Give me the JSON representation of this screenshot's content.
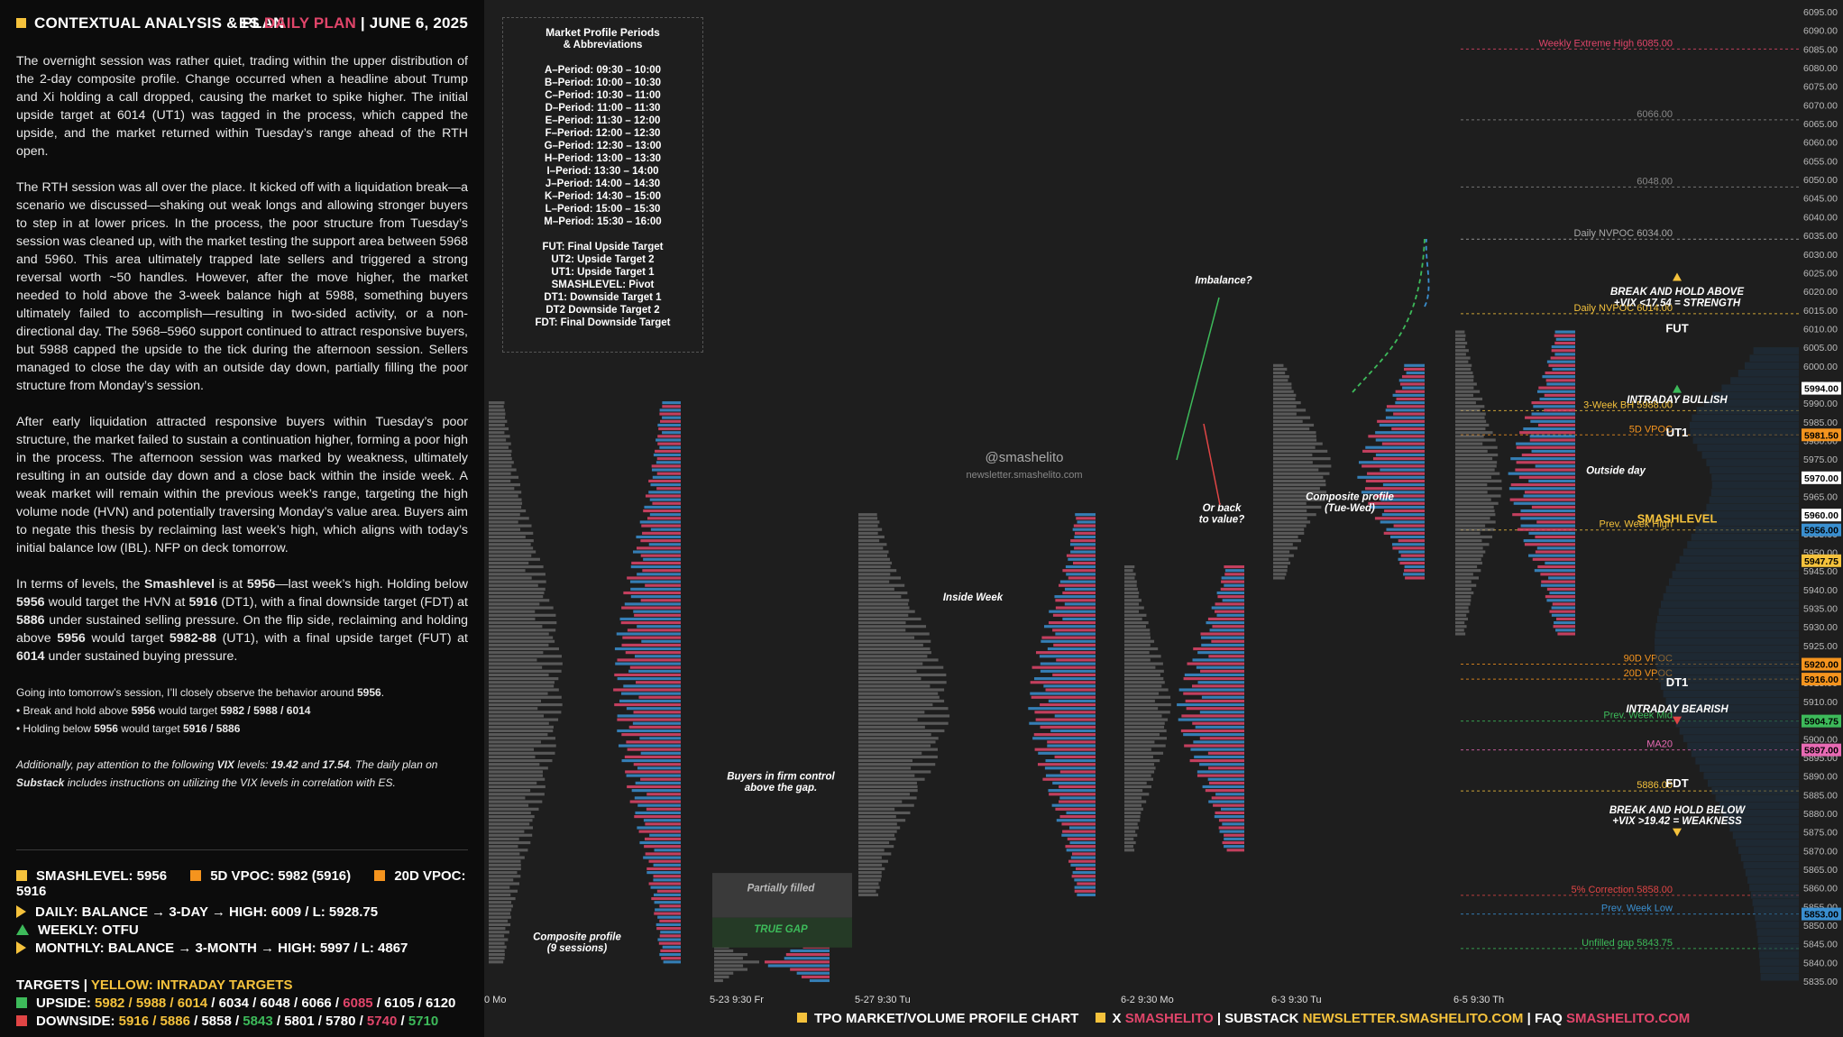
{
  "header": {
    "title": "CONTEXTUAL ANALYSIS & PLAN",
    "instrument": "ES",
    "plan": "DAILY PLAN",
    "date": "JUNE 6, 2025"
  },
  "paragraphs": [
    "The overnight session was rather quiet, trading within the upper distribution of the 2-day composite profile. Change occurred when a headline about Trump and Xi holding a call dropped, causing the market to spike higher. The initial upside target at 6014 (UT1) was tagged in the process, which capped the upside, and the market returned within Tuesday’s range ahead of the RTH open.",
    "The RTH session was all over the place. It kicked off with a liquidation break—a scenario we discussed—shaking out weak longs and allowing stronger buyers to step in at lower prices. In the process, the poor structure from Tuesday’s session was cleaned up, with the market testing the support area between 5968 and 5960. This area ultimately trapped late sellers and triggered a strong reversal worth ~50 handles. However, after the move higher, the market needed to hold above the 3-week balance high at 5988, something buyers ultimately failed to accomplish—resulting in two-sided activity, or a non-directional day. The 5968–5960 support continued to attract responsive buyers, but 5988 capped the upside to the tick during the afternoon session. Sellers managed to close the day with an outside day down, partially filling the poor structure from Monday’s session.",
    "After early liquidation attracted responsive buyers within Tuesday’s poor structure, the market failed to sustain a continuation higher, forming a poor high in the process. The afternoon session was marked by weakness, ultimately resulting in an outside day down and a close back within the inside week. A weak market will remain within the previous week’s range, targeting the high volume node (HVN) and potentially traversing Monday’s value area. Buyers aim to negate this thesis by reclaiming last week’s high, which aligns with today’s initial balance low (IBL). NFP on deck tomorrow."
  ],
  "levels_paragraph": {
    "p1": "In terms of levels, the ",
    "smashlevel_label": "Smashlevel",
    "p2": " is at ",
    "v1": "5956",
    "p3": "—last week’s high. Holding below ",
    "v2": "5956",
    "p4": " would target the HVN at ",
    "v3": "5916",
    "p5": " (DT1), with a final downside target (FDT) at ",
    "v4": "5886",
    "p6": " under sustained selling pressure. On the flip side, reclaiming and holding above ",
    "v5": "5956",
    "p7": " would target ",
    "v6": "5982-88",
    "p8": " (UT1), with a final upside target (FUT) at ",
    "v7": "6014",
    "p9": " under sustained buying pressure."
  },
  "tomorrow": {
    "line1a": "Going into tomorrow’s session, I’ll closely observe the behavior around ",
    "line1b": "5956",
    "line1c": ".",
    "bullet1a": "• Break and hold above ",
    "bullet1b": "5956",
    "bullet1c": " would target ",
    "bullet1d": "5982 / 5988 / 6014",
    "bullet2a": "• Holding below ",
    "bullet2b": "5956",
    "bullet2c": " would target ",
    "bullet2d": "5916 / 5886"
  },
  "vix_note": {
    "a": "Additionally, pay attention to the following ",
    "b": "VIX",
    "c": " levels: ",
    "d": "19.42",
    "e": " and ",
    "f": "17.54",
    "g": ". The daily plan on ",
    "h": "Substack",
    "i": " includes instructions on utilizing the VIX levels in correlation with ES."
  },
  "stats": {
    "smashlevel": "SMASHLEVEL: 5956",
    "vpoc5d": "5D VPOC: 5982 (5916)",
    "vpoc20d": "20D VPOC: 5916",
    "daily": "DAILY: BALANCE → 3-DAY → HIGH: 6009 / L: 5928.75",
    "weekly": "WEEKLY: OTFU",
    "monthly": "MONTHLY: BALANCE → 3-MONTH → HIGH: 5997 / L: 4867"
  },
  "targets": {
    "title_a": "TARGETS",
    "title_b": "YELLOW: INTRADAY TARGETS",
    "upside_label": "UPSIDE: ",
    "upside_yellow": "5982 / 5988 / 6014",
    "upside_rest_a": " / 6034 / 6048 / 6066 / ",
    "upside_pink": "6085",
    "upside_rest_b": " / 6105 / 6120",
    "downside_label": "DOWNSIDE: ",
    "downside_yellow": "5916 / 5886",
    "downside_rest_a": " / 5858 / ",
    "downside_green1": "5843",
    "downside_rest_b": " / 5801 / 5780 / ",
    "downside_pink": "5740",
    "downside_rest_c": " / ",
    "downside_green2": "5710"
  },
  "legend": {
    "title1": "Market Profile Periods",
    "title2": "& Abbreviations",
    "periods": [
      "A–Period: 09:30 – 10:00",
      "B–Period: 10:00 – 10:30",
      "C–Period: 10:30 – 11:00",
      "D–Period: 11:00 – 11:30",
      "E–Period: 11:30 – 12:00",
      "F–Period: 12:00 – 12:30",
      "G–Period: 12:30 – 13:00",
      "H–Period: 13:00 – 13:30",
      "I–Period: 13:30 – 14:00",
      "J–Period: 14:00 – 14:30",
      "K–Period: 14:30 – 15:00",
      "L–Period: 15:00 – 15:30",
      "M–Period: 15:30 – 16:00"
    ],
    "abbrevs": [
      "FUT: Final Upside Target",
      "UT2: Upside Target 2",
      "UT1: Upside Target 1",
      "SMASHLEVEL: Pivot",
      "DT1: Downside Target 1",
      "DT2 Downside Target 2",
      "FDT: Final Downside Target"
    ]
  },
  "footer": {
    "a": "TPO MARKET/VOLUME PROFILE CHART",
    "b": "X ",
    "c": "SMASHELITO",
    "d": " | SUBSTACK ",
    "e": "NEWSLETTER.SMASHELITO.COM",
    "f": " | FAQ ",
    "g": "SMASHELITO.COM"
  },
  "chart_data": {
    "type": "table",
    "title": "ES TPO Market/Volume Profile",
    "y_axis": {
      "min": 5835,
      "max": 6095,
      "step": 5,
      "ticks_note": "5835.00 – 6095.00 every 5.00"
    },
    "x_labels": [
      "0 Mo",
      "5-23  9:30 Fr",
      "5-27  9:30 Tu",
      "6-2  9:30 Mo",
      "6-3  9:30 Tu",
      "6-5  9:30 Th"
    ],
    "levels": [
      {
        "name": "Weekly Extreme High",
        "value": 6085.0,
        "color": "#e0456a",
        "label": "Weekly Extreme High  6085.00"
      },
      {
        "name": "6066",
        "value": 6066.0,
        "color": "#888888",
        "label": "6066.00"
      },
      {
        "name": "6048",
        "value": 6048.0,
        "color": "#888888",
        "label": "6048.00"
      },
      {
        "name": "Daily NVPOC",
        "value": 6034.0,
        "color": "#aaaaaa",
        "label": "Daily NVPOC  6034.00"
      },
      {
        "name": "Daily NVPOC 2",
        "value": 6014.0,
        "color": "#f5c23c",
        "label": "Daily NVPOC  6014.00"
      },
      {
        "name": "3-Week BH",
        "value": 5988.0,
        "color": "#f5c23c",
        "label": "3-Week BH  5988.00"
      },
      {
        "name": "5D VPOC",
        "value": 5981.5,
        "color": "#f5941e",
        "label": "5D VPOC"
      },
      {
        "name": "SMASHLEVEL",
        "value": 5956.0,
        "color": "#f5c23c",
        "label": "Prev. Week High"
      },
      {
        "name": "90D VPOC",
        "value": 5920.0,
        "color": "#f5941e",
        "label": "90D VPOC"
      },
      {
        "name": "20D VPOC",
        "value": 5916.0,
        "color": "#f5941e",
        "label": "20D VPOC"
      },
      {
        "name": "Prev. Week Mid",
        "value": 5904.75,
        "color": "#3dba5a",
        "label": "Prev. Week Mid"
      },
      {
        "name": "MA20",
        "value": 5897.0,
        "color": "#e86ab4",
        "label": "MA20"
      },
      {
        "name": "FDT",
        "value": 5886.0,
        "color": "#f5c23c",
        "label": "5886.00"
      },
      {
        "name": "5% Correction",
        "value": 5858.0,
        "color": "#e04545",
        "label": "5% Correction  5858.00"
      },
      {
        "name": "Prev. Week Low",
        "value": 5853.0,
        "color": "#3a8fd0",
        "label": "Prev. Week Low"
      },
      {
        "name": "Unfilled gap",
        "value": 5843.75,
        "color": "#3dba5a",
        "label": "Unfilled gap  5843.75"
      }
    ],
    "price_tags": [
      {
        "value": 5994.0,
        "text": "5994.00",
        "bg": "#ffffff",
        "fg": "#000000"
      },
      {
        "value": 5981.5,
        "text": "5981.50",
        "bg": "#f5941e",
        "fg": "#000000"
      },
      {
        "value": 5970.0,
        "text": "5970.00",
        "bg": "#ffffff",
        "fg": "#000000"
      },
      {
        "value": 5960.0,
        "text": "5960.00",
        "bg": "#ffffff",
        "fg": "#000000"
      },
      {
        "value": 5956.0,
        "text": "5956.00",
        "bg": "#3a8fd0",
        "fg": "#000000"
      },
      {
        "value": 5947.75,
        "text": "5947.75",
        "bg": "#f5c23c",
        "fg": "#000000"
      },
      {
        "value": 5920.0,
        "text": "5920.00",
        "bg": "#f5941e",
        "fg": "#000000"
      },
      {
        "value": 5916.0,
        "text": "5916.00",
        "bg": "#f5941e",
        "fg": "#000000"
      },
      {
        "value": 5904.75,
        "text": "5904.75",
        "bg": "#3dba5a",
        "fg": "#000000"
      },
      {
        "value": 5897.0,
        "text": "5897.00",
        "bg": "#e86ab4",
        "fg": "#000000"
      },
      {
        "value": 5853.0,
        "text": "5853.00",
        "bg": "#3a8fd0",
        "fg": "#000000"
      }
    ],
    "annotations": [
      {
        "text": "BREAK AND HOLD ABOVE",
        "value": 6020
      },
      {
        "text": "+VIX <17.54 = STRENGTH",
        "value": 6017
      },
      {
        "text": "FUT",
        "value": 6010
      },
      {
        "text": "INTRADAY BULLISH",
        "value": 5991
      },
      {
        "text": "UT1",
        "value": 5982
      },
      {
        "text": "SMASHLEVEL",
        "value": 5959
      },
      {
        "text": "DT1",
        "value": 5915
      },
      {
        "text": "INTRADAY BEARISH",
        "value": 5908
      },
      {
        "text": "FDT",
        "value": 5888
      },
      {
        "text": "BREAK AND HOLD BELOW",
        "value": 5881
      },
      {
        "text": "+VIX >19.42 = WEAKNESS",
        "value": 5878
      },
      {
        "text": "Outside day",
        "value": 5972
      },
      {
        "text": "Composite profile",
        "value": 5965
      },
      {
        "text": "(Tue-Wed)",
        "value": 5962
      },
      {
        "text": "Imbalance?",
        "value": 6023
      },
      {
        "text": "Or back",
        "value": 5962
      },
      {
        "text": "to value?",
        "value": 5959
      },
      {
        "text": "Inside Week",
        "value": 5938
      },
      {
        "text": "Buyers in firm control",
        "value": 5890
      },
      {
        "text": "above the gap.",
        "value": 5887
      },
      {
        "text": "Partially filled",
        "value": 5860
      },
      {
        "text": "TRUE GAP",
        "value": 5849
      },
      {
        "text": "Composite profile",
        "value": 5847
      },
      {
        "text": "(9 sessions)",
        "value": 5844
      }
    ],
    "watermark": [
      "@smashelito",
      "newsletter.smashelito.com"
    ],
    "profiles": [
      {
        "label": "Composite (9 sessions)",
        "top": 5990,
        "bottom": 5840
      },
      {
        "label": "5-23",
        "top": 5845,
        "bottom": 5835
      },
      {
        "label": "5-27 Inside Week",
        "top": 5960,
        "bottom": 5858
      },
      {
        "label": "6-2",
        "top": 5946,
        "bottom": 5870
      },
      {
        "label": "6-3 Tue-Wed composite",
        "top": 6000,
        "bottom": 5943
      },
      {
        "label": "6-5 Outside day",
        "top": 6009,
        "bottom": 5928
      }
    ]
  }
}
